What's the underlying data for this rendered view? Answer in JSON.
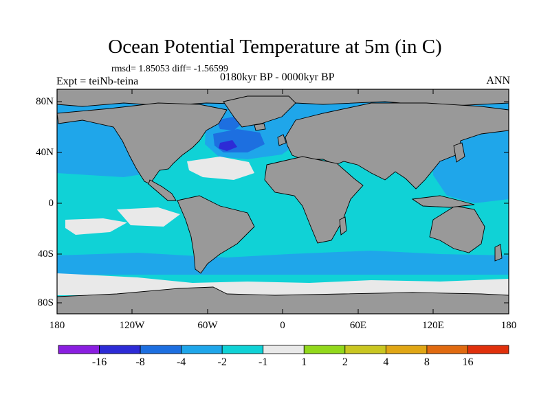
{
  "title": "Ocean Potential Temperature at 5m (in C)",
  "stats": "rmsd= 1.85053 diff= -1.56599",
  "experiment": "Expt = teiNb-teina",
  "period": "0180kyr BP - 0000kyr BP",
  "season": "ANN",
  "y_ticks": [
    {
      "value": 80,
      "label": "80N"
    },
    {
      "value": 40,
      "label": "40N"
    },
    {
      "value": 0,
      "label": "0"
    },
    {
      "value": -40,
      "label": "40S"
    },
    {
      "value": -80,
      "label": "80S"
    }
  ],
  "x_ticks": [
    {
      "value": -180,
      "label": "180"
    },
    {
      "value": -120,
      "label": "120W"
    },
    {
      "value": -60,
      "label": "60W"
    },
    {
      "value": 0,
      "label": "0"
    },
    {
      "value": 60,
      "label": "60E"
    },
    {
      "value": 120,
      "label": "120E"
    },
    {
      "value": 180,
      "label": "180"
    }
  ],
  "colorbar": {
    "colors": [
      "#8a1ee0",
      "#2d2bd6",
      "#1d6fe0",
      "#1fa6ea",
      "#10d2d6",
      "#e9e9e9",
      "#92d81c",
      "#c9c621",
      "#e0a615",
      "#e06a10",
      "#e0300c"
    ],
    "labels": [
      "-16",
      "-8",
      "-4",
      "-2",
      "-1",
      "1",
      "2",
      "4",
      "8",
      "16"
    ]
  },
  "colors": {
    "land": "#999999",
    "ocean_base": "#10d2d6",
    "minus_two_to_four": "#1fa6ea",
    "minus_four_to_eight": "#1d6fe0",
    "minus_eight_to_sixteen": "#2d2bd6",
    "near_zero": "#e9e9e9",
    "two_to_four": "#c9c621",
    "one_to_two": "#92d81c",
    "four_to_eight": "#e0a615"
  }
}
